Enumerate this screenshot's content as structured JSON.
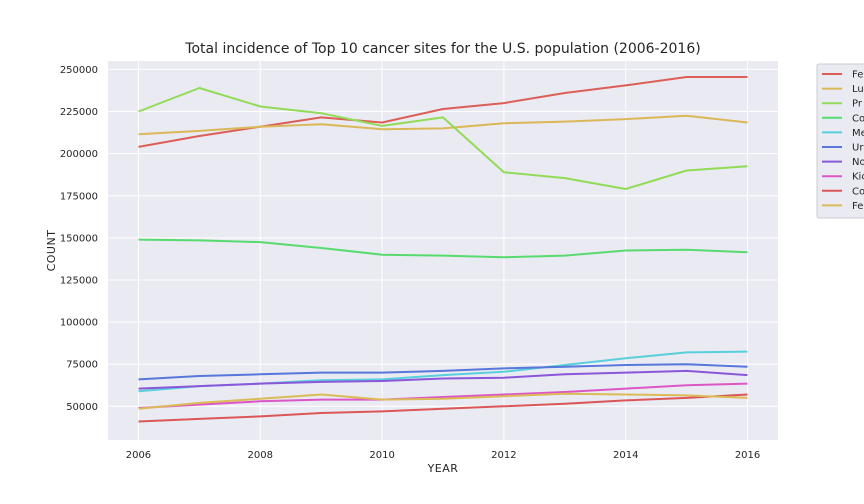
{
  "chart_data": {
    "type": "line",
    "title": "Total incidence of Top 10 cancer sites for the U.S. population (2006-2016)",
    "xlabel": "YEAR",
    "ylabel": "COUNT",
    "xlim": [
      2005.5,
      2016.5
    ],
    "ylim": [
      30000,
      255000
    ],
    "xticks": [
      2006,
      2008,
      2010,
      2012,
      2014,
      2016
    ],
    "yticks": [
      50000,
      75000,
      100000,
      125000,
      150000,
      175000,
      200000,
      225000,
      250000
    ],
    "grid": true,
    "legend_position": "outside-right",
    "x": [
      2006,
      2007,
      2008,
      2009,
      2010,
      2011,
      2012,
      2013,
      2014,
      2015,
      2016
    ],
    "series": [
      {
        "name": "Fe",
        "color": "#db5f57",
        "values": [
          204000,
          210500,
          216000,
          221500,
          218500,
          226500,
          230000,
          236000,
          240500,
          245500,
          245500
        ]
      },
      {
        "name": "Lu",
        "color": "#dbb857",
        "values": [
          211500,
          213500,
          216000,
          217500,
          214500,
          215000,
          218000,
          219000,
          220500,
          222500,
          218500
        ]
      },
      {
        "name": "Pr",
        "color": "#91db57",
        "values": [
          225000,
          239000,
          228000,
          224000,
          216500,
          221500,
          189000,
          185500,
          179000,
          190000,
          192500
        ]
      },
      {
        "name": "Co",
        "color": "#57db6f",
        "values": [
          149000,
          148500,
          147500,
          144000,
          140000,
          139500,
          138500,
          139500,
          142500,
          143000,
          141500
        ]
      },
      {
        "name": "Me",
        "color": "#57d0db",
        "values": [
          59000,
          62000,
          63500,
          65500,
          66000,
          68500,
          70500,
          74500,
          78500,
          82000,
          82500
        ]
      },
      {
        "name": "Ur",
        "color": "#5777db",
        "values": [
          66000,
          68000,
          69000,
          70000,
          70000,
          71000,
          72500,
          73500,
          74500,
          75000,
          73500
        ]
      },
      {
        "name": "No",
        "color": "#8a57db",
        "values": [
          60500,
          62000,
          63500,
          64500,
          65000,
          66500,
          67000,
          69000,
          70000,
          71000,
          68500
        ]
      },
      {
        "name": "Kic",
        "color": "#db57c7",
        "values": [
          49000,
          51000,
          53000,
          54000,
          54000,
          55500,
          57000,
          58500,
          60500,
          62500,
          63500
        ]
      },
      {
        "name": "Co",
        "color": "#db5757",
        "values": [
          41000,
          42500,
          44000,
          46000,
          47000,
          48500,
          50000,
          51500,
          53500,
          55000,
          57000
        ]
      },
      {
        "name": "Fe",
        "color": "#dbbb57",
        "values": [
          48500,
          52000,
          54500,
          57000,
          54000,
          54500,
          56000,
          57500,
          57000,
          56500,
          55000
        ]
      }
    ]
  }
}
